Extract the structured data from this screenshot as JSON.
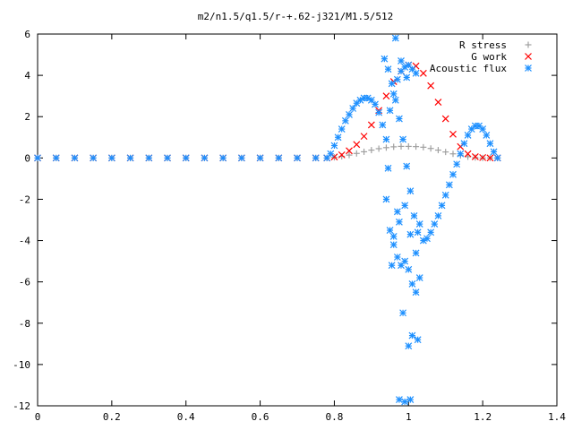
{
  "chart_data": {
    "type": "scatter",
    "title": "m2/n1.5/q1.5/r-+.62-j321/M1.5/512",
    "xlabel": "",
    "ylabel": "",
    "xlim": [
      0,
      1.4
    ],
    "ylim": [
      -12,
      6
    ],
    "xticks": [
      0,
      0.2,
      0.4,
      0.6,
      0.8,
      1,
      1.2,
      1.4
    ],
    "yticks": [
      -12,
      -10,
      -8,
      -6,
      -4,
      -2,
      0,
      2,
      4,
      6
    ],
    "xtick_labels": [
      "0",
      "0.2",
      "0.4",
      "0.6",
      "0.8",
      "1",
      "1.2",
      "1.4"
    ],
    "ytick_labels": [
      "-12",
      "-10",
      "-8",
      "-6",
      "-4",
      "-2",
      "0",
      "2",
      "4",
      "6"
    ],
    "grid": false,
    "legend_position": "top-right",
    "series": [
      {
        "name": "R stress",
        "marker": "plus",
        "color": "#a0a0a0",
        "x": [
          0,
          0.05,
          0.1,
          0.15,
          0.2,
          0.25,
          0.3,
          0.35,
          0.4,
          0.45,
          0.5,
          0.55,
          0.6,
          0.65,
          0.7,
          0.75,
          0.78,
          0.8,
          0.82,
          0.84,
          0.86,
          0.88,
          0.9,
          0.92,
          0.94,
          0.96,
          0.98,
          1.0,
          1.02,
          1.04,
          1.06,
          1.08,
          1.1,
          1.12,
          1.14,
          1.16,
          1.18,
          1.2,
          1.22,
          1.24
        ],
        "y": [
          0,
          0,
          0,
          0,
          0,
          0,
          0,
          0,
          0,
          0,
          0,
          0,
          0,
          0,
          0,
          0,
          0,
          0.03,
          0.08,
          0.14,
          0.22,
          0.3,
          0.38,
          0.45,
          0.5,
          0.54,
          0.56,
          0.56,
          0.55,
          0.52,
          0.46,
          0.38,
          0.29,
          0.2,
          0.12,
          0.06,
          0.02,
          0,
          0,
          0
        ]
      },
      {
        "name": "G work",
        "marker": "cross",
        "color": "#ff0000",
        "x": [
          0,
          0.05,
          0.1,
          0.15,
          0.2,
          0.25,
          0.3,
          0.35,
          0.4,
          0.45,
          0.5,
          0.55,
          0.6,
          0.65,
          0.7,
          0.75,
          0.78,
          0.8,
          0.82,
          0.84,
          0.86,
          0.88,
          0.9,
          0.92,
          0.94,
          0.96,
          0.98,
          1.0,
          1.02,
          1.04,
          1.06,
          1.08,
          1.1,
          1.12,
          1.14,
          1.16,
          1.18,
          1.2,
          1.22,
          1.24
        ],
        "y": [
          0,
          0,
          0,
          0,
          0,
          0,
          0,
          0,
          0,
          0,
          0,
          0,
          0,
          0,
          0,
          0,
          0,
          0.05,
          0.15,
          0.35,
          0.65,
          1.05,
          1.6,
          2.3,
          3.0,
          3.7,
          4.2,
          4.5,
          4.45,
          4.1,
          3.5,
          2.7,
          1.9,
          1.15,
          0.55,
          0.2,
          0.06,
          0.02,
          0,
          0
        ]
      },
      {
        "name": "Acoustic flux",
        "marker": "star",
        "color": "#1e90ff",
        "x": [
          0,
          0.05,
          0.1,
          0.15,
          0.2,
          0.25,
          0.3,
          0.35,
          0.4,
          0.45,
          0.5,
          0.55,
          0.6,
          0.65,
          0.7,
          0.75,
          0.78,
          0.79,
          0.8,
          0.81,
          0.82,
          0.83,
          0.84,
          0.85,
          0.86,
          0.87,
          0.88,
          0.89,
          0.9,
          0.91,
          0.92,
          0.93,
          0.94,
          0.95,
          0.96,
          0.97,
          0.98,
          0.99,
          1.0,
          1.01,
          1.02,
          1.03,
          1.04,
          1.05,
          1.06,
          1.07,
          1.08,
          1.09,
          1.1,
          1.11,
          1.12,
          1.13,
          1.14,
          1.15,
          1.16,
          1.17,
          1.18,
          1.19,
          1.2,
          1.21,
          1.22,
          1.23,
          1.24,
          0.935,
          0.945,
          0.955,
          0.965,
          0.975,
          0.985,
          0.995,
          1.005,
          1.015,
          1.025,
          0.94,
          0.95,
          0.96,
          0.97,
          0.98,
          0.99,
          1.0,
          1.01,
          1.02,
          1.03,
          0.945,
          0.96,
          0.975,
          0.99,
          1.005,
          1.02,
          0.955,
          0.97,
          0.985,
          1.0,
          1.01,
          1.025,
          0.965,
          0.98,
          0.995,
          0.975,
          0.99,
          1.005
        ],
        "y": [
          0,
          0,
          0,
          0,
          0,
          0,
          0,
          0,
          0,
          0,
          0,
          0,
          0,
          0,
          0,
          0,
          0,
          0.2,
          0.6,
          1.0,
          1.4,
          1.8,
          2.1,
          2.4,
          2.65,
          2.8,
          2.9,
          2.9,
          2.8,
          2.6,
          2.2,
          1.6,
          0.9,
          2.3,
          3.1,
          3.8,
          4.2,
          4.4,
          4.5,
          4.3,
          4.1,
          -3.2,
          -4.0,
          -3.9,
          -3.6,
          -3.2,
          -2.8,
          -2.3,
          -1.8,
          -1.3,
          -0.8,
          -0.3,
          0.2,
          0.7,
          1.1,
          1.4,
          1.55,
          1.55,
          1.4,
          1.1,
          0.7,
          0.3,
          0,
          4.8,
          4.3,
          3.6,
          2.8,
          1.9,
          0.9,
          -0.4,
          -1.6,
          -2.8,
          -3.6,
          -2.0,
          -3.5,
          -4.2,
          -4.8,
          -5.2,
          -5.0,
          -5.4,
          -6.1,
          -6.5,
          -5.8,
          -0.5,
          -3.8,
          -3.1,
          -2.3,
          -3.7,
          -4.6,
          -5.2,
          -2.6,
          -7.5,
          -9.1,
          -8.6,
          -8.8,
          5.8,
          4.7,
          3.9,
          -11.7,
          -11.8,
          -11.7
        ]
      }
    ]
  }
}
